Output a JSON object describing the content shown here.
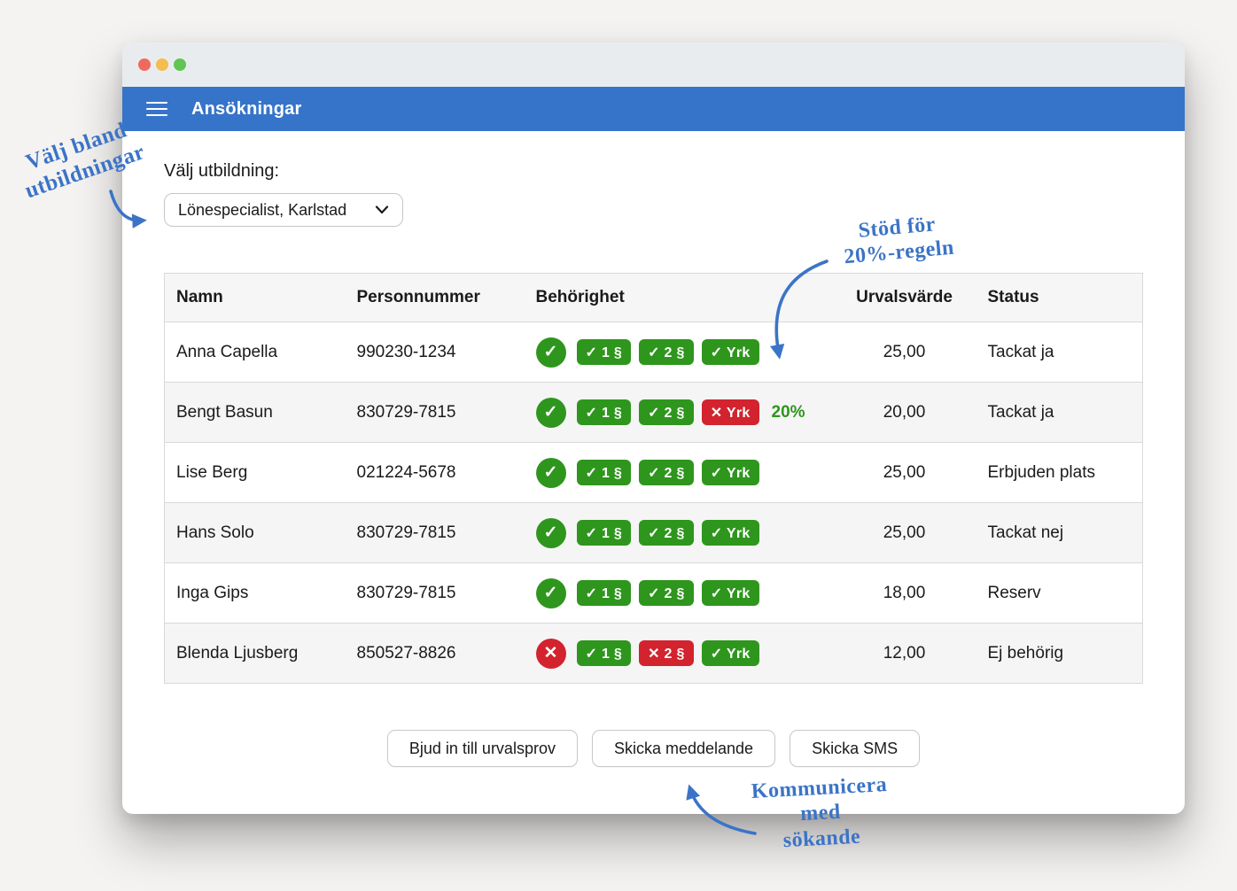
{
  "titlebar": {
    "traffic_lights": [
      "close",
      "minimize",
      "zoom"
    ]
  },
  "appbar": {
    "title": "Ansökningar",
    "menu_icon": "hamburger-icon"
  },
  "form": {
    "label": "Välj utbildning:",
    "select_value": "Lönespecialist, Karlstad",
    "chevron_icon": "chevron-down-icon"
  },
  "icons": {
    "pass": "✓",
    "fail": "✕"
  },
  "table": {
    "columns": [
      "Namn",
      "Personnummer",
      "Behörighet",
      "Urvalsvärde",
      "Status"
    ],
    "rows": [
      {
        "name": "Anna Capella",
        "personnummer": "990230-1234",
        "eligible": "pass",
        "badges": [
          {
            "label": "1 §",
            "state": "pass"
          },
          {
            "label": "2 §",
            "state": "pass"
          },
          {
            "label": "Yrk",
            "state": "pass"
          }
        ],
        "note": "",
        "urvalsvarde": "25,00",
        "status": "Tackat ja"
      },
      {
        "name": "Bengt Basun",
        "personnummer": "830729-7815",
        "eligible": "pass",
        "badges": [
          {
            "label": "1 §",
            "state": "pass"
          },
          {
            "label": "2 §",
            "state": "pass"
          },
          {
            "label": "Yrk",
            "state": "fail"
          }
        ],
        "note": "20%",
        "urvalsvarde": "20,00",
        "status": "Tackat ja"
      },
      {
        "name": "Lise Berg",
        "personnummer": "021224-5678",
        "eligible": "pass",
        "badges": [
          {
            "label": "1 §",
            "state": "pass"
          },
          {
            "label": "2 §",
            "state": "pass"
          },
          {
            "label": "Yrk",
            "state": "pass"
          }
        ],
        "note": "",
        "urvalsvarde": "25,00",
        "status": "Erbjuden plats"
      },
      {
        "name": "Hans Solo",
        "personnummer": "830729-7815",
        "eligible": "pass",
        "badges": [
          {
            "label": "1 §",
            "state": "pass"
          },
          {
            "label": "2 §",
            "state": "pass"
          },
          {
            "label": "Yrk",
            "state": "pass"
          }
        ],
        "note": "",
        "urvalsvarde": "25,00",
        "status": "Tackat nej"
      },
      {
        "name": "Inga Gips",
        "personnummer": "830729-7815",
        "eligible": "pass",
        "badges": [
          {
            "label": "1 §",
            "state": "pass"
          },
          {
            "label": "2 §",
            "state": "pass"
          },
          {
            "label": "Yrk",
            "state": "pass"
          }
        ],
        "note": "",
        "urvalsvarde": "18,00",
        "status": "Reserv"
      },
      {
        "name": "Blenda Ljusberg",
        "personnummer": "850527-8826",
        "eligible": "fail",
        "badges": [
          {
            "label": "1 §",
            "state": "pass"
          },
          {
            "label": "2 §",
            "state": "fail"
          },
          {
            "label": "Yrk",
            "state": "pass"
          }
        ],
        "note": "",
        "urvalsvarde": "12,00",
        "status": "Ej behörig"
      }
    ]
  },
  "actions": {
    "invite": "Bjud in till urvalsprov",
    "message": "Skicka meddelande",
    "sms": "Skicka SMS"
  },
  "annotations": {
    "choose": {
      "lines": [
        "Välj bland",
        "utbildningar"
      ]
    },
    "rule": {
      "lines": [
        "Stöd för",
        "20%-regeln"
      ]
    },
    "communicate": {
      "lines": [
        "Kommunicera",
        "med",
        "sökande"
      ]
    }
  },
  "colors": {
    "appbar": "#3674c9",
    "pass_green": "#2e961d",
    "fail_red": "#d2232e",
    "annotation_blue": "#3b74c7"
  }
}
